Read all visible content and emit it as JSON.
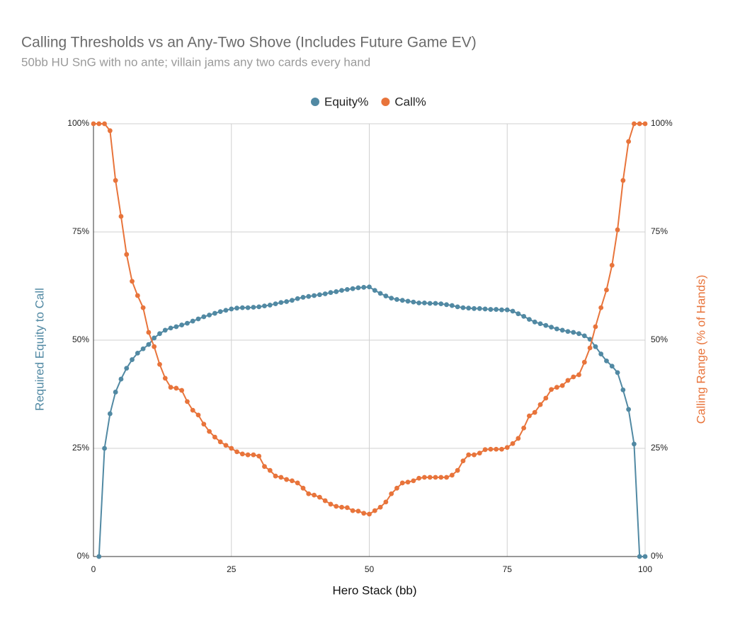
{
  "chart_data": {
    "type": "line",
    "title": "Calling Thresholds vs an Any-Two Shove (Includes Future Game EV)",
    "subtitle": "50bb HU SnG with no ante; villain jams any two cards every hand",
    "xlabel": "Hero Stack (bb)",
    "ylabel": "Required Equity to Call",
    "y2label": "Calling Range (% of Hands)",
    "x": [
      0,
      1,
      2,
      3,
      4,
      5,
      6,
      7,
      8,
      9,
      10,
      11,
      12,
      13,
      14,
      15,
      16,
      17,
      18,
      19,
      20,
      21,
      22,
      23,
      24,
      25,
      26,
      27,
      28,
      29,
      30,
      31,
      32,
      33,
      34,
      35,
      36,
      37,
      38,
      39,
      40,
      41,
      42,
      43,
      44,
      45,
      46,
      47,
      48,
      49,
      50,
      51,
      52,
      53,
      54,
      55,
      56,
      57,
      58,
      59,
      60,
      61,
      62,
      63,
      64,
      65,
      66,
      67,
      68,
      69,
      70,
      71,
      72,
      73,
      74,
      75,
      76,
      77,
      78,
      79,
      80,
      81,
      82,
      83,
      84,
      85,
      86,
      87,
      88,
      89,
      90,
      91,
      92,
      93,
      94,
      95,
      96,
      97,
      98,
      99,
      100
    ],
    "series": [
      {
        "name": "Equity%",
        "color": "#5189a3",
        "axis": "y",
        "values": [
          null,
          0,
          25,
          33,
          38,
          41,
          43.5,
          45.5,
          47,
          48,
          49,
          50.5,
          51.5,
          52.3,
          52.8,
          53.1,
          53.5,
          53.9,
          54.4,
          54.9,
          55.4,
          55.8,
          56.2,
          56.6,
          56.9,
          57.2,
          57.4,
          57.5,
          57.5,
          57.6,
          57.7,
          57.9,
          58.1,
          58.4,
          58.7,
          58.9,
          59.2,
          59.6,
          59.9,
          60.1,
          60.3,
          60.5,
          60.7,
          61,
          61.2,
          61.5,
          61.7,
          61.9,
          62.1,
          62.2,
          62.3,
          61.5,
          60.8,
          60.2,
          59.7,
          59.4,
          59.2,
          59,
          58.8,
          58.6,
          58.6,
          58.5,
          58.5,
          58.4,
          58.2,
          58,
          57.7,
          57.5,
          57.4,
          57.3,
          57.3,
          57.2,
          57.1,
          57.1,
          57,
          57,
          56.7,
          56.1,
          55.5,
          54.8,
          54.2,
          53.8,
          53.4,
          53,
          52.6,
          52.3,
          52,
          51.8,
          51.5,
          51,
          50.2,
          48.5,
          46.8,
          45.2,
          44,
          42.5,
          38.5,
          34,
          26,
          0,
          0
        ]
      },
      {
        "name": "Call%",
        "color": "#e8743b",
        "axis": "y2",
        "values": [
          100,
          100,
          100,
          98.4,
          86.9,
          78.6,
          69.8,
          63.6,
          60.3,
          57.5,
          51.8,
          48.5,
          44.4,
          41.2,
          39.1,
          38.9,
          38.4,
          35.8,
          33.8,
          32.7,
          30.6,
          28.9,
          27.6,
          26.5,
          25.7,
          25,
          24.2,
          23.7,
          23.5,
          23.5,
          23.2,
          20.8,
          19.9,
          18.6,
          18.3,
          17.8,
          17.5,
          17,
          15.8,
          14.5,
          14.2,
          13.7,
          12.9,
          12.1,
          11.6,
          11.4,
          11.3,
          10.6,
          10.5,
          10,
          9.8,
          10.6,
          11.4,
          12.6,
          14.5,
          15.8,
          17,
          17.2,
          17.5,
          18.1,
          18.3,
          18.3,
          18.3,
          18.3,
          18.3,
          18.8,
          19.9,
          22.1,
          23.5,
          23.5,
          23.9,
          24.7,
          24.8,
          24.8,
          24.8,
          25.2,
          26.1,
          27.3,
          29.7,
          32.5,
          33.3,
          35.1,
          36.6,
          38.6,
          39.1,
          39.5,
          40.7,
          41.5,
          42,
          44.9,
          48.2,
          53.1,
          57.5,
          61.6,
          67.3,
          75.5,
          86.9,
          95.9,
          100,
          100,
          100
        ]
      }
    ],
    "xlim": [
      0,
      100
    ],
    "xticks": [
      0,
      25,
      50,
      75,
      100
    ],
    "ylim": [
      0,
      100
    ],
    "yticks": [
      {
        "value": 0,
        "label": "0%"
      },
      {
        "value": 25,
        "label": "25%"
      },
      {
        "value": 50,
        "label": "50%"
      },
      {
        "value": 75,
        "label": "75%"
      },
      {
        "value": 100,
        "label": "100%"
      }
    ],
    "y2lim": [
      0,
      100
    ],
    "y2ticks": [
      {
        "value": 0,
        "label": "0%"
      },
      {
        "value": 25,
        "label": "25%"
      },
      {
        "value": 50,
        "label": "50%"
      },
      {
        "value": 75,
        "label": "75%"
      },
      {
        "value": 100,
        "label": "100%"
      }
    ],
    "grid": true,
    "legend": "top"
  }
}
